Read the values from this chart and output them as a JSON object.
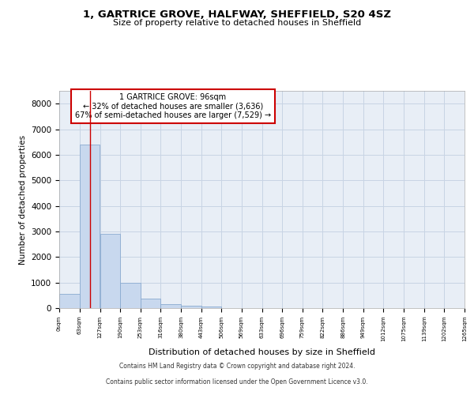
{
  "title1": "1, GARTRICE GROVE, HALFWAY, SHEFFIELD, S20 4SZ",
  "title2": "Size of property relative to detached houses in Sheffield",
  "xlabel": "Distribution of detached houses by size in Sheffield",
  "ylabel": "Number of detached properties",
  "property_size": 96,
  "annotation_title": "1 GARTRICE GROVE: 96sqm",
  "annotation_line1": "← 32% of detached houses are smaller (3,636)",
  "annotation_line2": "67% of semi-detached houses are larger (7,529) →",
  "footnote1": "Contains HM Land Registry data © Crown copyright and database right 2024.",
  "footnote2": "Contains public sector information licensed under the Open Government Licence v3.0.",
  "bin_width": 63,
  "bin_starts": [
    0,
    63,
    127,
    190,
    253,
    316,
    380,
    443,
    506,
    569,
    633,
    696,
    759,
    822,
    886,
    949,
    1012,
    1075,
    1139,
    1202
  ],
  "bar_values": [
    570,
    6400,
    2920,
    980,
    370,
    160,
    90,
    75,
    0,
    0,
    0,
    0,
    0,
    0,
    0,
    0,
    0,
    0,
    0,
    0
  ],
  "bar_color": "#c8d8ee",
  "bar_edge_color": "#8aaad0",
  "grid_color": "#c8d4e4",
  "background_color": "#e8eef6",
  "vline_color": "#cc0000",
  "annotation_box_color": "#cc0000",
  "ylim": [
    0,
    8500
  ],
  "yticks": [
    0,
    1000,
    2000,
    3000,
    4000,
    5000,
    6000,
    7000,
    8000
  ]
}
